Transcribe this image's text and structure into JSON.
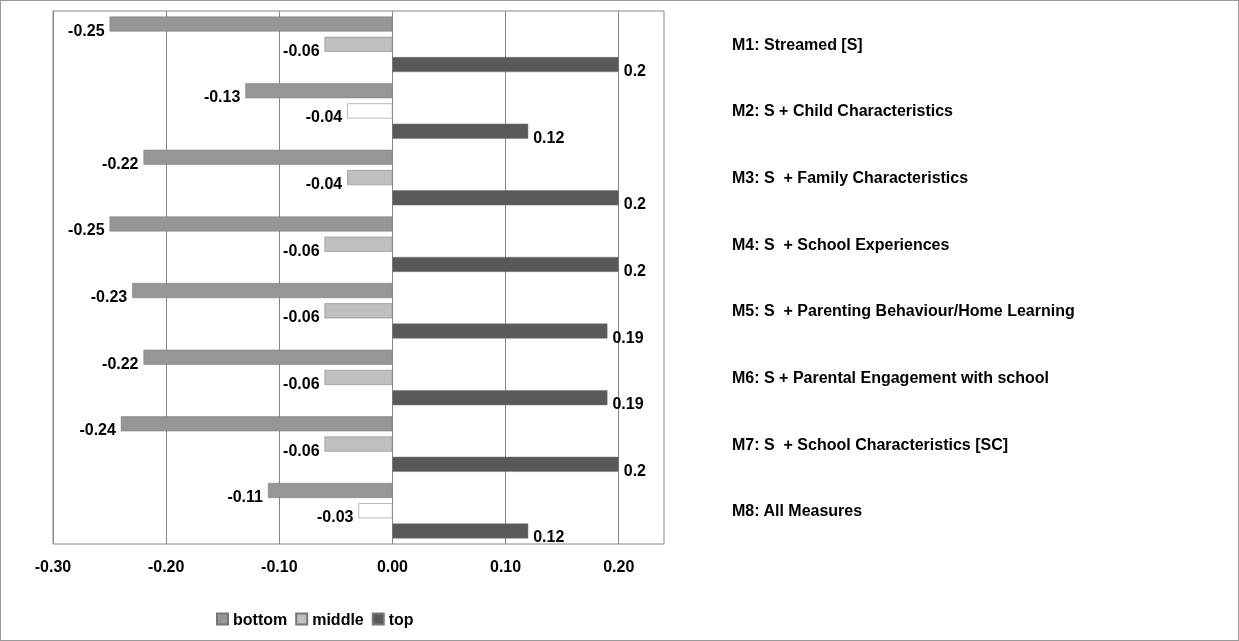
{
  "chart_data": {
    "type": "bar",
    "orientation": "horizontal",
    "categories": [
      "M1: Streamed [S]",
      "M2: S + Child Characteristics",
      "M3: S  + Family Characteristics",
      "M4: S  + School Experiences",
      "M5: S  + Parenting Behaviour/Home Learning",
      "M6: S + Parental Engagement with school",
      "M7: S  + School Characteristics [SC]",
      "M8: All Measures"
    ],
    "series": [
      {
        "name": "bottom",
        "color": "#969696",
        "values": [
          -0.25,
          -0.13,
          -0.22,
          -0.25,
          -0.23,
          -0.22,
          -0.24,
          -0.11
        ]
      },
      {
        "name": "middle",
        "color": "#bfbfbf",
        "colors": [
          "#bfbfbf",
          "#ffffff",
          "#bfbfbf",
          "#bfbfbf",
          "#bfbfbf",
          "#bfbfbf",
          "#bfbfbf",
          "#ffffff"
        ],
        "values": [
          -0.06,
          -0.04,
          -0.04,
          -0.06,
          -0.06,
          -0.06,
          -0.06,
          -0.03
        ]
      },
      {
        "name": "top",
        "color": "#595959",
        "values": [
          0.2,
          0.12,
          0.2,
          0.2,
          0.19,
          0.19,
          0.2,
          0.12
        ]
      }
    ],
    "xlim": [
      -0.3,
      0.24
    ],
    "xticks": [
      {
        "value": -0.3,
        "label": "-0.30"
      },
      {
        "value": -0.2,
        "label": "-0.20"
      },
      {
        "value": -0.1,
        "label": "-0.10"
      },
      {
        "value": 0,
        "label": "0.00"
      },
      {
        "value": 0.1,
        "label": "0.10"
      },
      {
        "value": 0.2,
        "label": "0.20"
      }
    ],
    "grid": "x",
    "legend": "bottom",
    "data_labels": true
  }
}
